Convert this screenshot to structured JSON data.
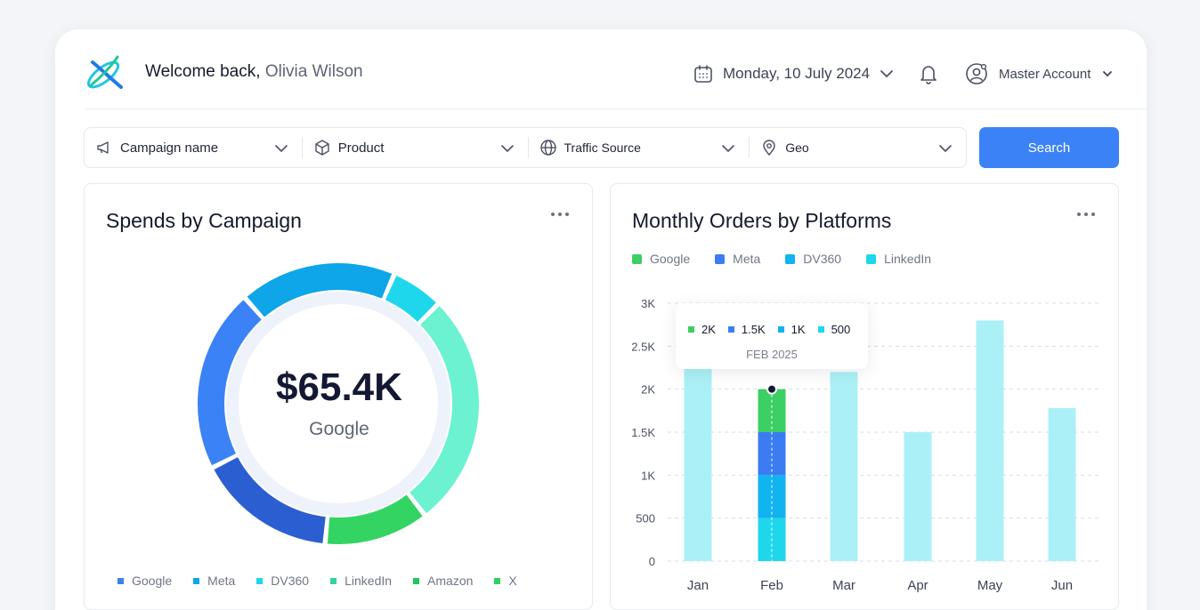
{
  "header": {
    "welcome_prefix": "Welcome back,",
    "user_name": "Olivia Wilson",
    "date": "Monday, 10 July 2024",
    "account": "Master Account"
  },
  "filters": [
    {
      "label": "Campaign name",
      "icon": "megaphone-icon"
    },
    {
      "label": "Product",
      "icon": "box-icon"
    },
    {
      "label": "Traffic Source",
      "icon": "globe-icon"
    },
    {
      "label": "Geo",
      "icon": "location-pin-icon"
    }
  ],
  "search_label": "Search",
  "spends": {
    "title": "Spends by Campaign",
    "center_value": "$65.4K",
    "center_label": "Google",
    "legend": [
      {
        "name": "Google",
        "color": "#3b82f6"
      },
      {
        "name": "Meta",
        "color": "#0ea5e9"
      },
      {
        "name": "DV360",
        "color": "#22d3ee"
      },
      {
        "name": "LinkedIn",
        "color": "#34d399"
      },
      {
        "name": "Amazon",
        "color": "#22c55e"
      },
      {
        "name": "X",
        "color": "#2fcf61"
      }
    ]
  },
  "orders": {
    "title": "Monthly Orders by Platforms",
    "legend": [
      {
        "name": "Google",
        "color": "#3ccf63"
      },
      {
        "name": "Meta",
        "color": "#3b7cf2"
      },
      {
        "name": "DV360",
        "color": "#11b3f0"
      },
      {
        "name": "LinkedIn",
        "color": "#1ed7ec"
      }
    ],
    "tooltip": {
      "values": [
        {
          "label": "2K",
          "color": "#3ccf63"
        },
        {
          "label": "1.5K",
          "color": "#3b7cf2"
        },
        {
          "label": "1K",
          "color": "#11b3f0"
        },
        {
          "label": "500",
          "color": "#1ed7ec"
        }
      ],
      "date": "FEB 2025"
    }
  },
  "chart_data": [
    {
      "type": "pie",
      "title": "Spends by Campaign",
      "categories": [
        "Google",
        "Meta",
        "DV360",
        "LinkedIn",
        "Amazon",
        "X"
      ],
      "values": [
        21,
        18,
        6,
        27,
        12,
        16
      ],
      "colors": [
        "#3b82f6",
        "#0ea5e9",
        "#1ed7ec",
        "#6cf2d0",
        "#34d463",
        "#2b5fd1"
      ],
      "donut": true
    },
    {
      "type": "bar",
      "title": "Monthly Orders by Platforms",
      "categories": [
        "Jan",
        "Feb",
        "Mar",
        "Apr",
        "May",
        "Jun"
      ],
      "yticks": [
        "0",
        "500",
        "1K",
        "1.5K",
        "2K",
        "2.5K",
        "3K"
      ],
      "ylim": [
        0,
        3000
      ],
      "values": [
        3000,
        2000,
        2200,
        1500,
        2800,
        1780
      ],
      "highlight": {
        "category": "Feb",
        "series": [
          {
            "name": "LinkedIn",
            "value": 500
          },
          {
            "name": "DV360",
            "value": 500
          },
          {
            "name": "Meta",
            "value": 500
          },
          {
            "name": "Google",
            "value": 500
          }
        ]
      },
      "grid": true
    }
  ]
}
